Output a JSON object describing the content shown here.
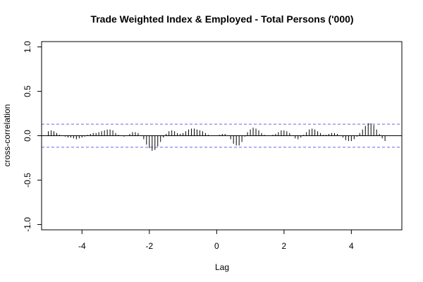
{
  "chart_data": {
    "type": "bar",
    "title": "Trade Weighted Index & Employed - Total Persons ('000)",
    "xlabel": "Lag",
    "ylabel": "cross-correlation",
    "xlim": [
      -5.2,
      5.5
    ],
    "ylim": [
      -1.06,
      1.06
    ],
    "x_ticks": [
      -4,
      -2,
      0,
      2,
      4
    ],
    "y_ticks": [
      -1.0,
      -0.5,
      0.0,
      0.5,
      1.0
    ],
    "x_tick_labels": [
      "-4",
      "-2",
      "0",
      "2",
      "4"
    ],
    "y_tick_labels": [
      "-1.0",
      "-0.5",
      "0.0",
      "0.5",
      "1.0"
    ],
    "confidence_bound": 0.13,
    "confidence_color": "#6666ee",
    "bar_color": "#000000",
    "zero_line": true,
    "lag_step": 0.0833333,
    "lags": [
      -5.0,
      -4.9167,
      -4.8333,
      -4.75,
      -4.6667,
      -4.5833,
      -4.5,
      -4.4167,
      -4.3333,
      -4.25,
      -4.1667,
      -4.0833,
      -4.0,
      -3.9167,
      -3.8333,
      -3.75,
      -3.6667,
      -3.5833,
      -3.5,
      -3.4167,
      -3.3333,
      -3.25,
      -3.1667,
      -3.0833,
      -3.0,
      -2.9167,
      -2.8333,
      -2.75,
      -2.6667,
      -2.5833,
      -2.5,
      -2.4167,
      -2.3333,
      -2.25,
      -2.1667,
      -2.0833,
      -2.0,
      -1.9167,
      -1.8333,
      -1.75,
      -1.6667,
      -1.5833,
      -1.5,
      -1.4167,
      -1.3333,
      -1.25,
      -1.1667,
      -1.0833,
      -1.0,
      -0.9167,
      -0.8333,
      -0.75,
      -0.6667,
      -0.5833,
      -0.5,
      -0.4167,
      -0.3333,
      -0.25,
      -0.1667,
      -0.0833,
      0.0,
      0.0833,
      0.1667,
      0.25,
      0.3333,
      0.4167,
      0.5,
      0.5833,
      0.6667,
      0.75,
      0.8333,
      0.9167,
      1.0,
      1.0833,
      1.1667,
      1.25,
      1.3333,
      1.4167,
      1.5,
      1.5833,
      1.6667,
      1.75,
      1.8333,
      1.9167,
      2.0,
      2.0833,
      2.1667,
      2.25,
      2.3333,
      2.4167,
      2.5,
      2.5833,
      2.6667,
      2.75,
      2.8333,
      2.9167,
      3.0,
      3.0833,
      3.1667,
      3.25,
      3.3333,
      3.4167,
      3.5,
      3.5833,
      3.6667,
      3.75,
      3.8333,
      3.9167,
      4.0,
      4.0833,
      4.1667,
      4.25,
      4.3333,
      4.4167,
      4.5,
      4.5833,
      4.6667,
      4.75,
      4.8333,
      4.9167,
      5.0
    ],
    "values": [
      0.05,
      0.06,
      0.05,
      0.03,
      0.01,
      0.0,
      -0.01,
      -0.02,
      -0.02,
      -0.03,
      -0.04,
      -0.03,
      -0.02,
      -0.01,
      0.01,
      0.02,
      0.03,
      0.03,
      0.04,
      0.05,
      0.06,
      0.07,
      0.07,
      0.06,
      0.03,
      0.01,
      0.0,
      -0.01,
      0.0,
      0.02,
      0.04,
      0.04,
      0.03,
      0.0,
      -0.04,
      -0.1,
      -0.14,
      -0.17,
      -0.16,
      -0.12,
      -0.07,
      -0.02,
      0.02,
      0.05,
      0.06,
      0.05,
      0.03,
      0.02,
      0.03,
      0.05,
      0.07,
      0.08,
      0.08,
      0.07,
      0.06,
      0.05,
      0.03,
      0.01,
      0.0,
      0.0,
      0.0,
      0.01,
      0.02,
      0.02,
      0.0,
      -0.04,
      -0.09,
      -0.11,
      -0.11,
      -0.07,
      -0.01,
      0.04,
      0.07,
      0.09,
      0.08,
      0.06,
      0.03,
      0.01,
      0.0,
      0.0,
      0.01,
      0.02,
      0.04,
      0.06,
      0.06,
      0.05,
      0.03,
      0.0,
      -0.03,
      -0.04,
      -0.02,
      0.01,
      0.04,
      0.07,
      0.08,
      0.07,
      0.05,
      0.03,
      0.01,
      0.01,
      0.02,
      0.03,
      0.03,
      0.02,
      0.0,
      -0.02,
      -0.05,
      -0.06,
      -0.06,
      -0.04,
      -0.01,
      0.03,
      0.07,
      0.11,
      0.14,
      0.14,
      0.12,
      0.07,
      0.02,
      -0.03,
      -0.06
    ]
  }
}
